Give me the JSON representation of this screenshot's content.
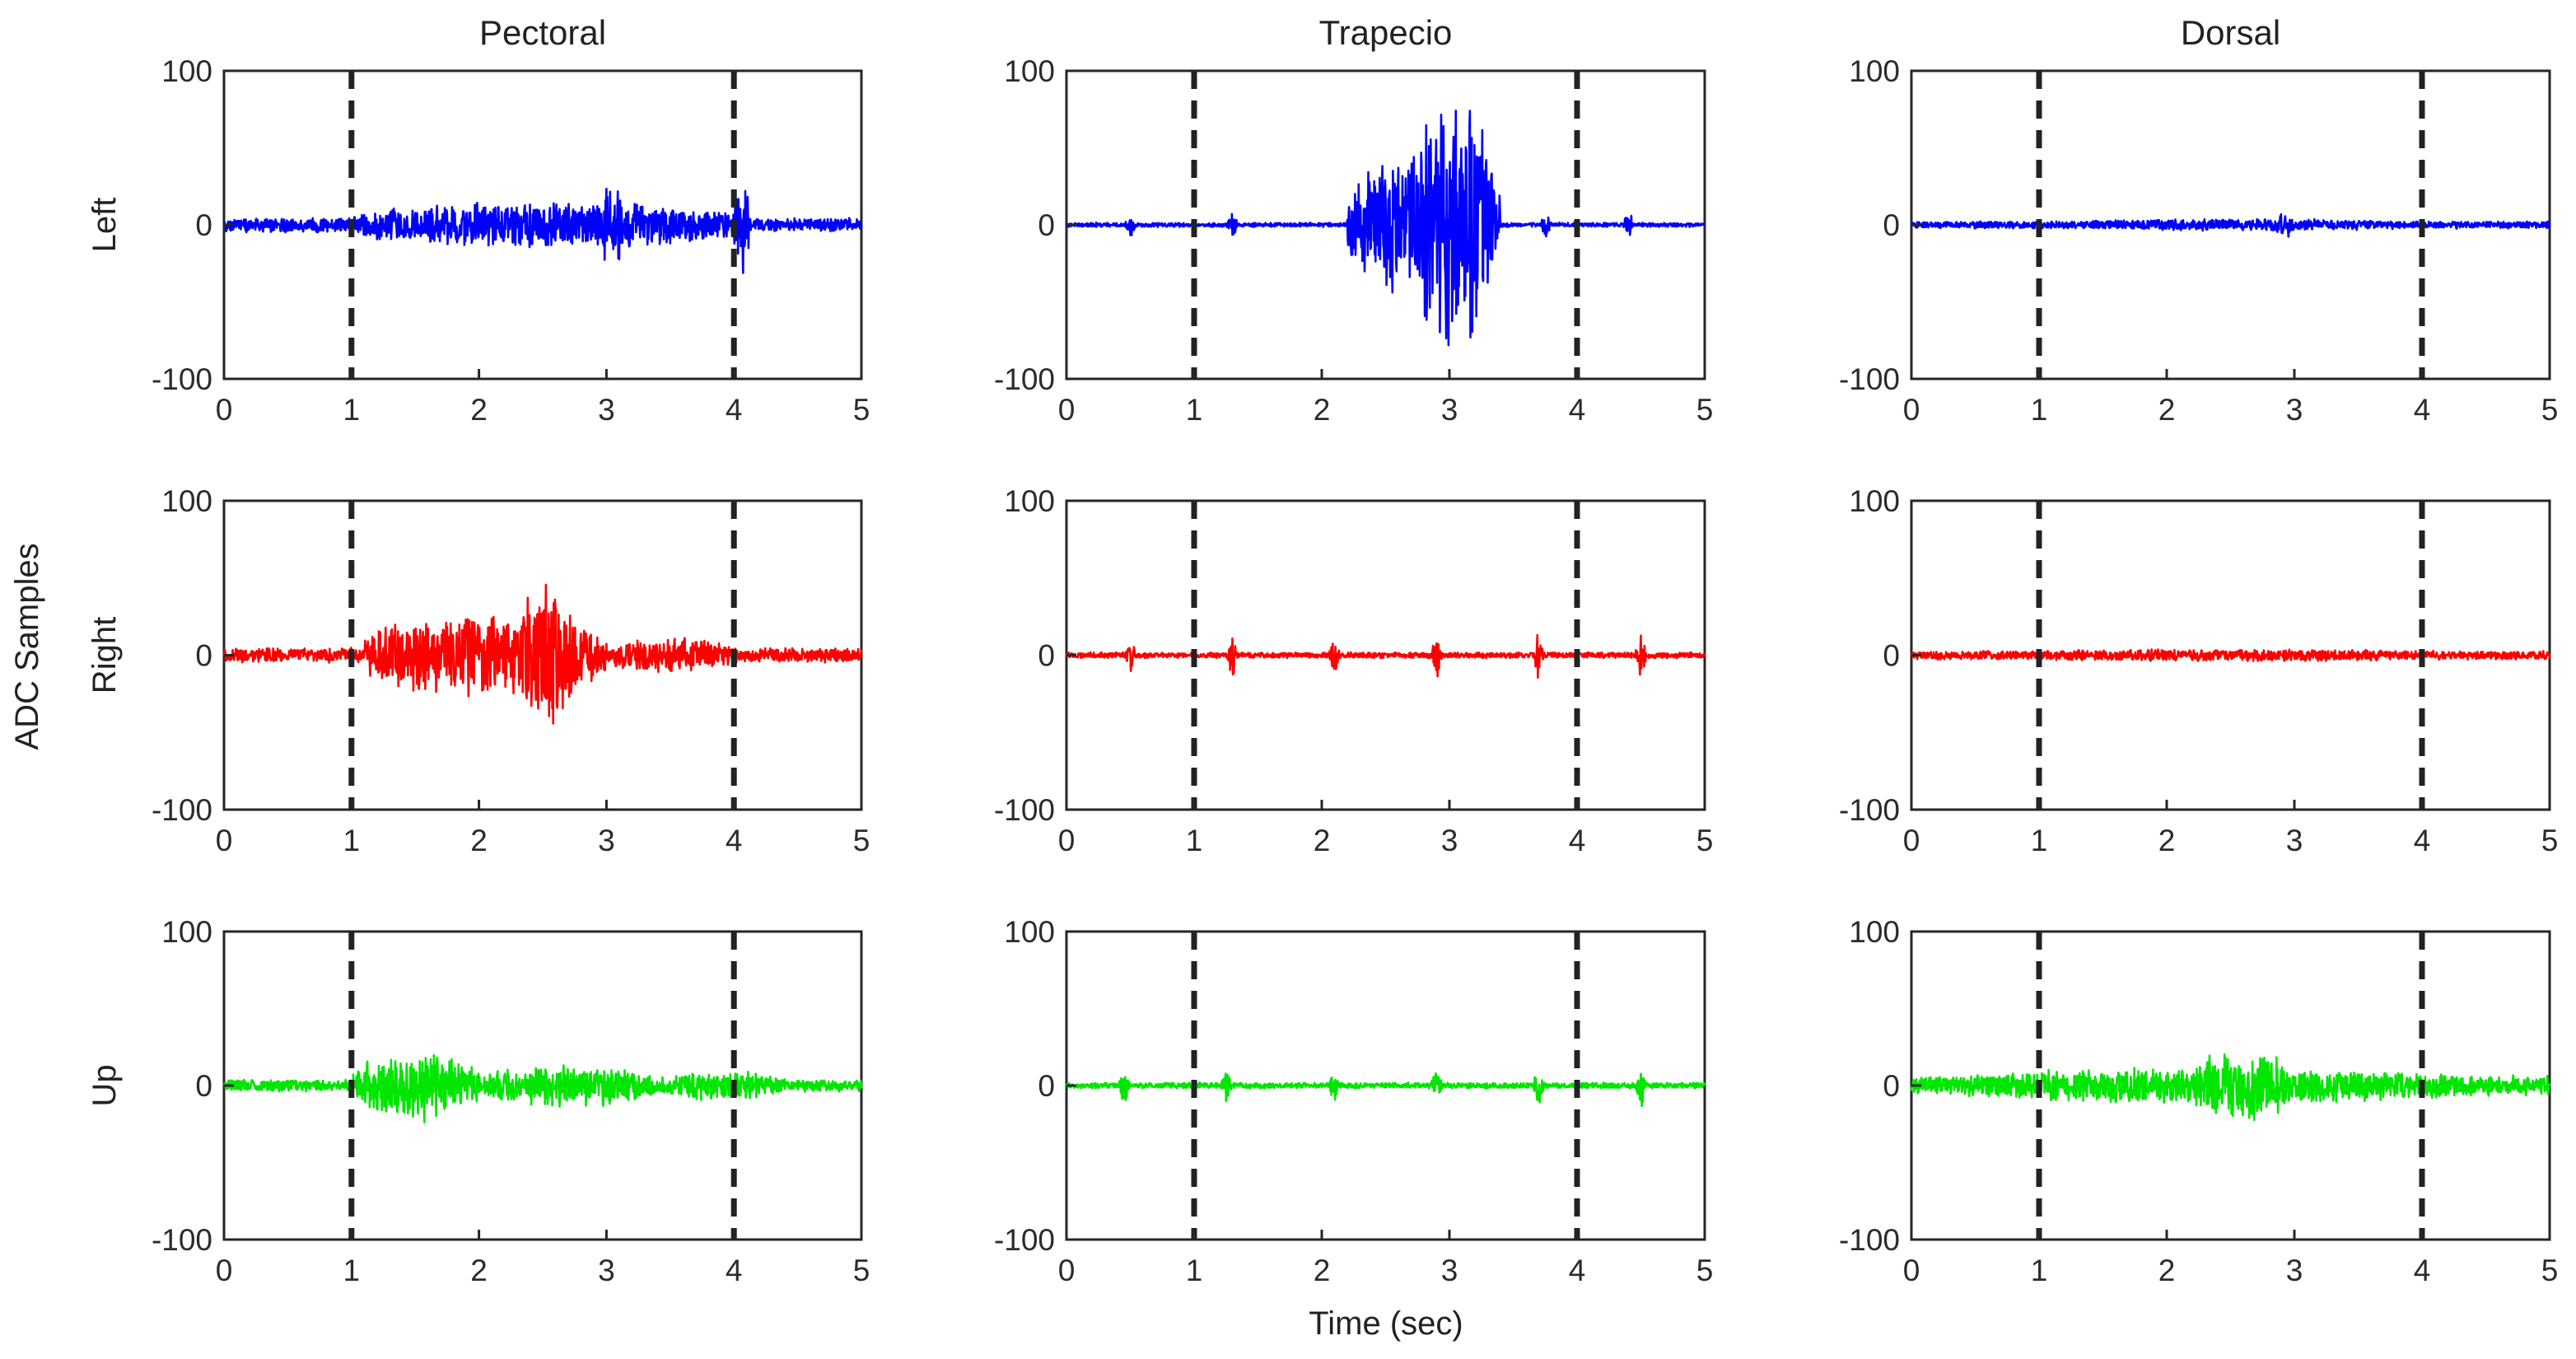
{
  "chart_data": {
    "type": "line",
    "columns": [
      "Pectoral",
      "Trapecio",
      "Dorsal"
    ],
    "rows": [
      "Left",
      "Right",
      "Up"
    ],
    "ylabel": "ADC Samples",
    "xlabel": "Time (sec)",
    "xlim": [
      0,
      5
    ],
    "ylim": [
      -100,
      100
    ],
    "xticks": [
      0,
      1,
      2,
      3,
      4,
      5
    ],
    "yticks": [
      -100,
      0,
      100
    ],
    "event_markers_sec": [
      1,
      4
    ],
    "colors": {
      "Left": "#0000ff",
      "Right": "#ff0000",
      "Up": "#00e600",
      "markers": "#222222"
    },
    "envelopes": {
      "Left": {
        "Pectoral": {
          "baseline": 5,
          "bursts": [
            {
              "start": 1.0,
              "end": 4.0,
              "amp": 16
            },
            {
              "start": 2.95,
              "end": 3.15,
              "amp": 30
            },
            {
              "start": 4.0,
              "end": 4.12,
              "amp": 32
            }
          ]
        },
        "Trapecio": {
          "baseline": 1.5,
          "spikes": [
            0.5,
            1.3,
            3.75,
            4.4
          ],
          "spike_amp": 12,
          "bursts": [
            {
              "start": 2.2,
              "end": 3.4,
              "amp": 50
            },
            {
              "start": 2.7,
              "end": 3.35,
              "amp": 92
            }
          ]
        },
        "Dorsal": {
          "baseline": 2.5,
          "bursts": [
            {
              "start": 1.0,
              "end": 4.1,
              "amp": 4
            },
            {
              "start": 2.85,
              "end": 3.0,
              "amp": 9
            }
          ]
        }
      },
      "Right": {
        "Pectoral": {
          "baseline": 5,
          "bursts": [
            {
              "start": 1.1,
              "end": 3.0,
              "amp": 28
            },
            {
              "start": 2.3,
              "end": 2.75,
              "amp": 48
            },
            {
              "start": 3.0,
              "end": 4.0,
              "amp": 12
            }
          ]
        },
        "Trapecio": {
          "baseline": 2,
          "spikes": [
            0.5,
            1.3,
            2.1,
            2.9,
            3.7,
            4.5
          ],
          "spike_amp": 18,
          "bursts": []
        },
        "Dorsal": {
          "baseline": 3,
          "bursts": [
            {
              "start": 0.5,
              "end": 4.5,
              "amp": 4
            }
          ]
        }
      },
      "Up": {
        "Pectoral": {
          "baseline": 4,
          "bursts": [
            {
              "start": 1.0,
              "end": 2.0,
              "amp": 24
            },
            {
              "start": 2.0,
              "end": 3.4,
              "amp": 14
            },
            {
              "start": 3.4,
              "end": 4.4,
              "amp": 10
            }
          ]
        },
        "Trapecio": {
          "baseline": 2,
          "spikes": [
            0.45,
            1.25,
            2.1,
            2.9,
            3.7,
            4.5
          ],
          "spike_amp": 16,
          "bursts": []
        },
        "Dorsal": {
          "baseline": 7,
          "bursts": [
            {
              "start": 0.2,
              "end": 4.6,
              "amp": 12
            },
            {
              "start": 2.2,
              "end": 3.0,
              "amp": 24
            }
          ]
        }
      }
    }
  }
}
